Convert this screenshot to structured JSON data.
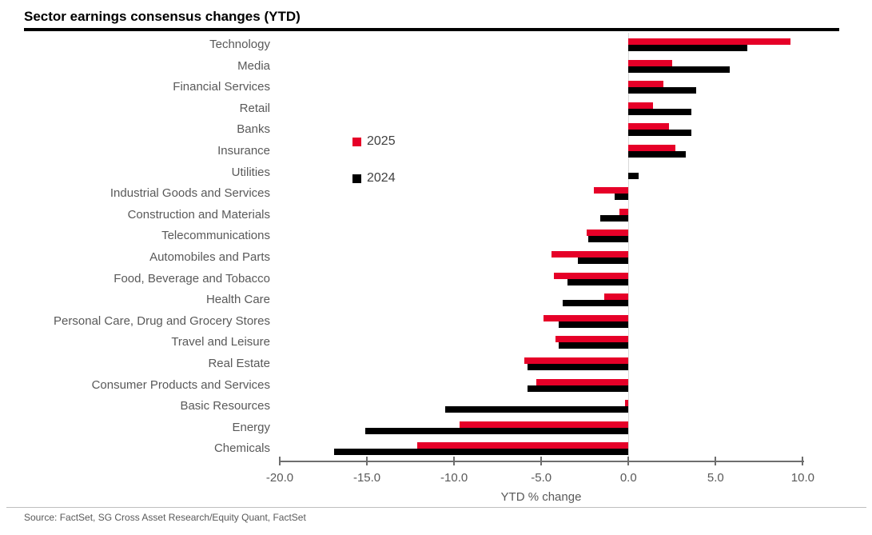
{
  "title": "Sector earnings consensus changes (YTD)",
  "source": "Source: FactSet, SG Cross Asset Research/Equity Quant, FactSet",
  "colors": {
    "accent_red": "#e60028",
    "bar_black": "#000000",
    "label_gray": "#595959",
    "legend_text": "#404040"
  },
  "chart_data": {
    "type": "bar",
    "orientation": "horizontal",
    "title": "Sector earnings consensus changes (YTD)",
    "xlabel": "YTD % change",
    "xlim": [
      -20.0,
      10.0
    ],
    "xticks": [
      "-20.0",
      "-15.0",
      "-10.0",
      "-5.0",
      "0.0",
      "5.0",
      "10.0"
    ],
    "grid": false,
    "legend_position": "inside-left-center",
    "categories": [
      "Technology",
      "Media",
      "Financial Services",
      "Retail",
      "Banks",
      "Insurance",
      "Utilities",
      "Industrial Goods and Services",
      "Construction and Materials",
      "Telecommunications",
      "Automobiles and Parts",
      "Food, Beverage and Tobacco",
      "Health Care",
      "Personal Care, Drug and Grocery Stores",
      "Travel and Leisure",
      "Real Estate",
      "Consumer Products and Services",
      "Basic Resources",
      "Energy",
      "Chemicals"
    ],
    "series": [
      {
        "name": "2025",
        "color": "#e60028",
        "values": [
          9.3,
          2.5,
          2.0,
          1.4,
          2.3,
          2.7,
          0.0,
          -2.0,
          -0.5,
          -2.4,
          -4.4,
          -4.3,
          -1.4,
          -4.9,
          -4.2,
          -6.0,
          -5.3,
          -0.2,
          -9.7,
          -12.1
        ]
      },
      {
        "name": "2024",
        "color": "#000000",
        "values": [
          6.8,
          5.8,
          3.9,
          3.6,
          3.6,
          3.3,
          0.6,
          -0.8,
          -1.6,
          -2.3,
          -2.9,
          -3.5,
          -3.8,
          -4.0,
          -4.0,
          -5.8,
          -5.8,
          -10.5,
          -15.1,
          -16.9
        ]
      }
    ]
  }
}
